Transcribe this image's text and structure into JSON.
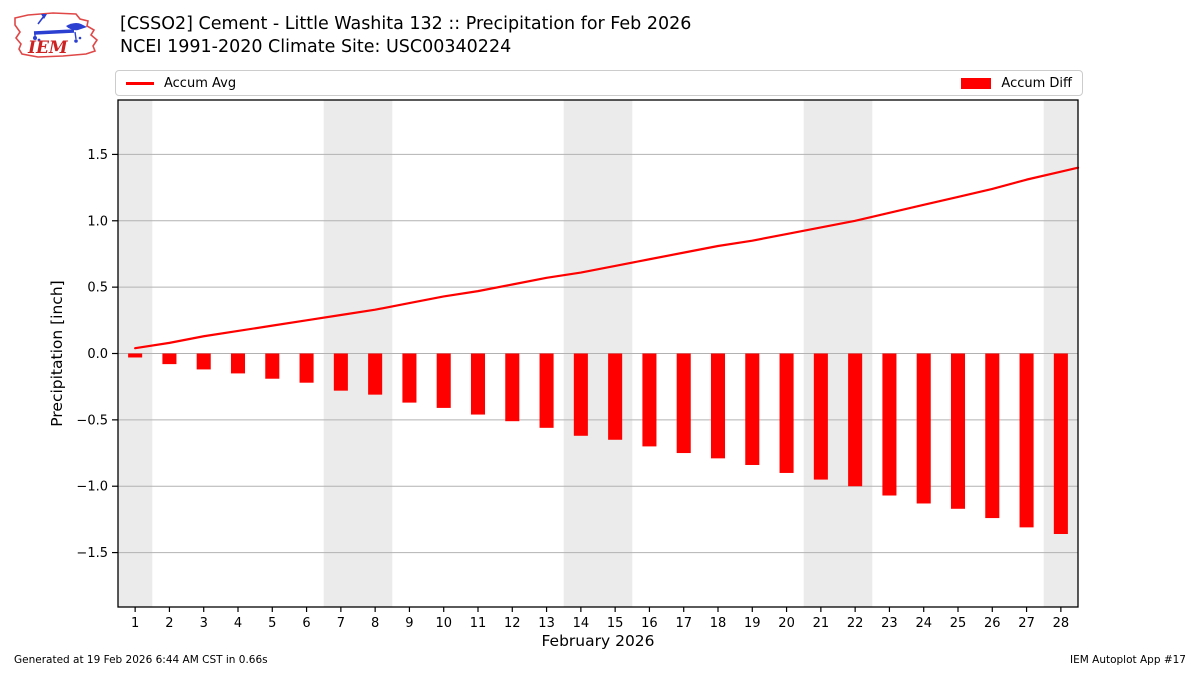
{
  "logo": {
    "text": "IEM"
  },
  "chart_data": {
    "type": "bar",
    "title": "[CSSO2] Cement - Little Washita 132 :: Precipitation for Feb 2026",
    "subtitle": "NCEI 1991-2020 Climate Site: USC00340224",
    "xlabel": "February 2026",
    "ylabel": "Precipitation [inch]",
    "x": [
      1,
      2,
      3,
      4,
      5,
      6,
      7,
      8,
      9,
      10,
      11,
      12,
      13,
      14,
      15,
      16,
      17,
      18,
      19,
      20,
      21,
      22,
      23,
      24,
      25,
      26,
      27,
      28
    ],
    "series": [
      {
        "name": "Accum Avg",
        "type": "line",
        "color": "#ff0000",
        "values": [
          0.04,
          0.08,
          0.13,
          0.17,
          0.21,
          0.25,
          0.29,
          0.33,
          0.38,
          0.43,
          0.47,
          0.52,
          0.57,
          0.61,
          0.66,
          0.71,
          0.76,
          0.81,
          0.85,
          0.9,
          0.95,
          1.0,
          1.06,
          1.12,
          1.18,
          1.24,
          1.31,
          1.37
        ]
      },
      {
        "name": "Accum Diff",
        "type": "bar",
        "color": "#ff0000",
        "values": [
          -0.03,
          -0.08,
          -0.12,
          -0.15,
          -0.19,
          -0.22,
          -0.28,
          -0.31,
          -0.37,
          -0.41,
          -0.46,
          -0.51,
          -0.56,
          -0.62,
          -0.65,
          -0.7,
          -0.75,
          -0.79,
          -0.84,
          -0.9,
          -0.95,
          -1.0,
          -1.07,
          -1.13,
          -1.17,
          -1.24,
          -1.31,
          -1.36
        ]
      }
    ],
    "xlim": [
      0.5,
      28.5
    ],
    "ylim": [
      -1.91,
      1.91
    ],
    "yticks": [
      -1.5,
      -1.0,
      -0.5,
      0.0,
      0.5,
      1.0,
      1.5
    ],
    "grid": "horizontal",
    "weekend_bands": [
      [
        0.5,
        1.5
      ],
      [
        6.5,
        8.5
      ],
      [
        13.5,
        15.5
      ],
      [
        20.5,
        22.5
      ],
      [
        27.5,
        28.5
      ]
    ],
    "legend_position": "top"
  },
  "colors": {
    "series_red": "#ff0000",
    "weekend_band": "#ebebeb",
    "gridline": "#b2b2b2",
    "axis": "#000000",
    "legend_border": "#cccccc"
  },
  "footer": {
    "left": "Generated at 19 Feb 2026 6:44 AM CST in 0.66s",
    "right": "IEM Autoplot App #17"
  }
}
